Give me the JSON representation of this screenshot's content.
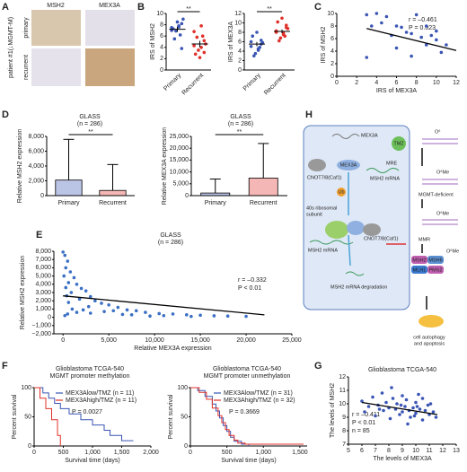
{
  "panels": [
    "A",
    "B",
    "C",
    "D",
    "E",
    "F",
    "G",
    "H"
  ],
  "panel_A": {
    "columns": [
      "MSH2",
      "MEX3A"
    ],
    "rows": [
      "primary",
      "recurrent"
    ],
    "patient": "patient #1(↓MGMT-M)"
  },
  "chart_data": [
    {
      "type": "strip",
      "ylabel": "IRS of MSH2",
      "categories": [
        "Primary",
        "Recurrent"
      ],
      "colors": [
        "#3a55b4",
        "#e0302a"
      ],
      "values": [
        [
          7.5,
          8.2,
          7.8,
          6.9,
          7.3,
          9.0,
          6.2,
          8.5,
          5.5,
          7.0,
          3.8,
          7.6
        ],
        [
          6.8,
          5.2,
          4.0,
          3.5,
          2.8,
          4.6,
          6.0,
          2.2,
          5.8,
          4.3,
          3.1,
          7.8
        ]
      ],
      "means": [
        7.2,
        4.6
      ],
      "errors": [
        0.45,
        0.55
      ],
      "ylim": [
        0,
        10
      ],
      "yticks": [
        0,
        2,
        4,
        6,
        8,
        10
      ],
      "annotations": [
        "**"
      ]
    },
    {
      "type": "strip",
      "ylabel": "IRS of MEX3A",
      "categories": [
        "Primary",
        "Recurrent"
      ],
      "colors": [
        "#3a55b4",
        "#e0302a"
      ],
      "values": [
        [
          5.0,
          6.3,
          4.2,
          3.5,
          7.2,
          5.8,
          4.8,
          8.0,
          3.0,
          6.0,
          5.5,
          4.5
        ],
        [
          8.3,
          9.0,
          7.5,
          6.8,
          10.2,
          8.8,
          7.2,
          11.0,
          6.2,
          8.0,
          9.5,
          7.8
        ]
      ],
      "means": [
        5.5,
        8.2
      ],
      "errors": [
        0.45,
        0.4
      ],
      "ylim": [
        0,
        12
      ],
      "yticks": [
        0,
        2,
        4,
        6,
        8,
        10,
        12
      ],
      "annotations": [
        "**"
      ]
    },
    {
      "type": "scatter",
      "xlabel": "IRS of MEX3A",
      "ylabel": "IRS of MSH2",
      "color": "#3a55b4",
      "x": [
        3,
        3.5,
        4,
        4.5,
        5,
        5.5,
        6,
        6.5,
        7,
        7.5,
        8,
        8.5,
        9,
        9,
        9.5,
        10,
        10,
        10.5,
        11,
        3,
        6,
        7.5
      ],
      "y": [
        9.8,
        8,
        10,
        8.5,
        9.5,
        6.5,
        8,
        7.8,
        7,
        6.8,
        9.8,
        6.2,
        5,
        8,
        6.5,
        5.8,
        7.2,
        3.8,
        5,
        3,
        4.5,
        3.2
      ],
      "trend": {
        "x": [
          3,
          12
        ],
        "y": [
          7.6,
          4.1
        ]
      },
      "xlim": [
        0,
        12
      ],
      "xticks": [
        0,
        2,
        4,
        6,
        8,
        10,
        12
      ],
      "ylim": [
        0,
        10
      ],
      "yticks": [
        0,
        2,
        4,
        6,
        8,
        10
      ],
      "annotations": [
        "r = –0.461",
        "P = 0.023"
      ]
    },
    {
      "type": "bar",
      "title": "GLASS",
      "subtitle": "(n = 286)",
      "ylabel": "Relative MSH2 expression",
      "categories": [
        "Primary",
        "Recurrent"
      ],
      "colors": [
        "#3a55b4",
        "#e0302a"
      ],
      "values": [
        2100,
        700
      ],
      "max": [
        7600,
        4200
      ],
      "ylim": [
        0,
        8000
      ],
      "yticks": [
        0,
        {
          "value": 2000,
          "label": "2,000"
        },
        {
          "value": 4000,
          "label": "4,000"
        },
        {
          "value": 6000,
          "label": "6,000"
        },
        {
          "value": 8000,
          "label": "8,000"
        }
      ],
      "annotations": [
        "**"
      ]
    },
    {
      "type": "bar",
      "title": "GLASS",
      "subtitle": "(n = 286)",
      "ylabel": "Relative MEX3A expression",
      "categories": [
        "Primary",
        "Recurrent"
      ],
      "colors": [
        "#3a55b4",
        "#e0302a"
      ],
      "values": [
        1100,
        7400
      ],
      "max": [
        7000,
        22000
      ],
      "ylim": [
        0,
        25000
      ],
      "yticks": [
        0,
        {
          "value": 5000,
          "label": "5,000"
        },
        {
          "value": 10000,
          "label": "10,000"
        },
        {
          "value": 15000,
          "label": "15,000"
        },
        {
          "value": 20000,
          "label": "20,000"
        },
        {
          "value": 25000,
          "label": "25,000"
        }
      ],
      "annotations": [
        "**"
      ]
    },
    {
      "type": "scatter",
      "title": "GLASS",
      "subtitle": "(n = 286)",
      "xlabel": "Relative MEX3A expression",
      "ylabel": "Relative MSH2 expression",
      "color": "#3a6fc4",
      "x": [
        0,
        200,
        500,
        300,
        800,
        100,
        1200,
        600,
        1500,
        300,
        2000,
        900,
        2500,
        400,
        3000,
        1800,
        3500,
        600,
        4200,
        5000,
        2800,
        6000,
        1000,
        7000,
        8000,
        4500,
        9000,
        3000,
        10500,
        12000,
        6500,
        13500,
        15000,
        11000,
        16500,
        18000,
        20000,
        14000,
        500,
        1500,
        7500,
        9500,
        200,
        2200,
        5500
      ],
      "y": [
        7900,
        7500,
        6800,
        6000,
        5500,
        5000,
        4800,
        4200,
        4000,
        3600,
        3500,
        3000,
        3200,
        2600,
        2500,
        2200,
        2000,
        1800,
        1700,
        1500,
        1300,
        1200,
        1000,
        900,
        800,
        700,
        600,
        500,
        450,
        400,
        350,
        300,
        250,
        200,
        180,
        150,
        120,
        100,
        400,
        600,
        300,
        150,
        200,
        900,
        800
      ],
      "trend": {
        "x": [
          0,
          22000
        ],
        "y": [
          2600,
          300
        ]
      },
      "xlim": [
        -1000,
        25000
      ],
      "xticks": [
        0,
        {
          "value": 5000,
          "label": "5,000"
        },
        {
          "value": 10000,
          "label": "10,000"
        },
        {
          "value": 15000,
          "label": "15,000"
        },
        {
          "value": 20000,
          "label": "20,000"
        },
        {
          "value": 25000,
          "label": "25,000"
        }
      ],
      "ylim": [
        -2000,
        8000
      ],
      "yticks": [
        {
          "value": -2000,
          "label": "−2,000"
        },
        {
          "value": -1000,
          "label": "−1,000"
        },
        0,
        {
          "value": 1000,
          "label": "1,000"
        },
        {
          "value": 2000,
          "label": "2,000"
        },
        {
          "value": 3000,
          "label": "3,000"
        },
        {
          "value": 4000,
          "label": "4,000"
        },
        {
          "value": 5000,
          "label": "5,000"
        },
        {
          "value": 6000,
          "label": "6,000"
        },
        {
          "value": 7000,
          "label": "7,000"
        },
        {
          "value": 8000,
          "label": "8,000"
        }
      ],
      "annotations": [
        "r = –0.332",
        "P < 0.01"
      ]
    },
    {
      "type": "line",
      "title": "Glioblastoma TCGA-540",
      "subtitle": "MGMT promoter methylation",
      "xlabel": "Survival time (days)",
      "ylabel": "Percent survival",
      "series": [
        {
          "name": "MEX3Alow/TMZ (n = 11)",
          "color": "#3a55b4",
          "x": [
            0,
            150,
            250,
            350,
            450,
            600,
            800,
            1000,
            1200,
            1300,
            1500,
            1700
          ],
          "y": [
            100,
            91,
            82,
            73,
            64,
            55,
            45,
            36,
            27,
            18,
            9,
            9
          ]
        },
        {
          "name": "MEX3Ahigh/TMZ (n = 11)",
          "color": "#e0302a",
          "x": [
            0,
            100,
            200,
            300,
            400,
            450
          ],
          "y": [
            100,
            82,
            64,
            45,
            18,
            0
          ]
        }
      ],
      "xlim": [
        0,
        2000
      ],
      "xticks": [
        0,
        500,
        {
          "value": 1000,
          "label": "1,000"
        },
        {
          "value": 1500,
          "label": "1,500"
        },
        {
          "value": 2000,
          "label": "2,000"
        }
      ],
      "ylim": [
        0,
        100
      ],
      "yticks": [
        0,
        50,
        100
      ],
      "annotations": [
        "P = 0.0027"
      ]
    },
    {
      "type": "line",
      "title": "Glioblastoma TCGA-540",
      "subtitle": "MGMT promoter unmethylation",
      "xlabel": "Survival time (days)",
      "ylabel": "Percent survival",
      "series": [
        {
          "name": "MEX3Alow/TMZ (n = 31)",
          "color": "#3a55b4",
          "x": [
            0,
            100,
            200,
            300,
            350,
            400,
            450,
            500,
            550,
            600,
            700,
            800
          ],
          "y": [
            100,
            95,
            85,
            72,
            60,
            48,
            35,
            25,
            15,
            8,
            3,
            0
          ]
        },
        {
          "name": "MEX3Ahigh/TMZ (n = 32)",
          "color": "#e0302a",
          "x": [
            0,
            120,
            220,
            300,
            380,
            430,
            480,
            530,
            600,
            650,
            750,
            1550
          ],
          "y": [
            100,
            92,
            80,
            65,
            52,
            40,
            28,
            18,
            10,
            5,
            3,
            3
          ]
        }
      ],
      "xlim": [
        0,
        1600
      ],
      "xticks": [
        0,
        500,
        {
          "value": 1000,
          "label": "1,000"
        },
        {
          "value": 1500,
          "label": "1,500"
        }
      ],
      "ylim": [
        0,
        100
      ],
      "yticks": [
        0,
        50,
        100
      ],
      "annotations": [
        "P = 0.3669"
      ]
    },
    {
      "type": "scatter",
      "title": "Glioblastoma TCGA-540",
      "xlabel": "The levels of MEX3A",
      "ylabel": "The levels of MSH2",
      "color": "#3a55b4",
      "x": [
        6,
        6.2,
        6.5,
        6.8,
        7,
        7.2,
        7.5,
        7.6,
        7.8,
        8,
        8.1,
        8.3,
        8.5,
        8.6,
        8.8,
        9,
        9,
        9.2,
        9.3,
        9.5,
        9.6,
        9.8,
        10,
        10,
        10.1,
        10.3,
        10.5,
        10.5,
        10.7,
        10.9,
        11,
        11.1,
        11.3,
        11.5,
        8.2,
        9.4,
        7.3,
        10.2,
        9.9,
        8.9
      ],
      "y": [
        10.2,
        9.4,
        9.8,
        10.5,
        9.1,
        9.9,
        10.8,
        9.5,
        10.1,
        9.7,
        8.9,
        10.4,
        9.6,
        10,
        9.2,
        10.6,
        9.4,
        9.8,
        10.3,
        9.5,
        9,
        9.7,
        10.1,
        9.3,
        9.8,
        9.6,
        10.4,
        8.8,
        9.5,
        9.9,
        9.2,
        10,
        9.4,
        9,
        11.2,
        8.5,
        9.6,
        10.7,
        9.1,
        9.9
      ],
      "trend": {
        "x": [
          6,
          11.6
        ],
        "y": [
          10.1,
          9.2
        ]
      },
      "xlim": [
        5,
        13
      ],
      "xticks": [
        5,
        6,
        7,
        8,
        9,
        10,
        11,
        12,
        13
      ],
      "ylim": [
        7,
        12
      ],
      "yticks": [
        7,
        8,
        9,
        10,
        11,
        12
      ],
      "annotations": [
        "r = –0.411",
        "P < 0.01",
        "n = 85"
      ]
    }
  ],
  "diagram_H": {
    "labels": [
      "MEX3A",
      "TMZ",
      "MEX3A",
      "CNOT7/8(Caf1)",
      "MRE",
      "MSH2 mRNA",
      "Ub",
      "40s ribosomal",
      "subunit",
      "CNOT7/8(Caf1)",
      "MSH2 mRNA",
      "MSH2 mRNA degradation",
      "O⁶",
      "O⁶Me",
      "MGMT-deficient",
      "O⁶Me",
      "MMR",
      "MSH2",
      "MSH6",
      "MLH1",
      "PMS2",
      "O⁶Me",
      "cell autophagy",
      "and apoptosis"
    ]
  }
}
